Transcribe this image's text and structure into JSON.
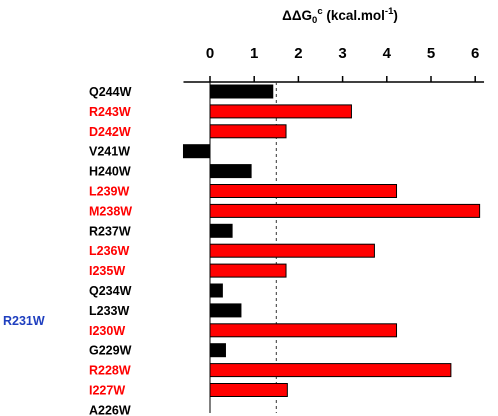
{
  "chart_data": {
    "type": "bar",
    "orientation": "horizontal",
    "title": "ΔΔG",
    "title_sub": "0",
    "title_sup": "c",
    "title_units": " (kcal.mol",
    "title_units_sup": "-1",
    "title_units_end": ")",
    "xlim": [
      -0.6,
      6.2
    ],
    "x_ticks": [
      0,
      1,
      2,
      3,
      4,
      5,
      6
    ],
    "x_tick_labels": [
      "0",
      "1",
      "2",
      "3",
      "4",
      "5",
      "6"
    ],
    "reference_line": 1.5,
    "categories": [
      "Q244W",
      "R243W",
      "D242W",
      "V241W",
      "H240W",
      "L239W",
      "M238W",
      "R237W",
      "L236W",
      "I235W",
      "Q234W",
      "L233W",
      "I230W",
      "G229W",
      "R228W",
      "I227W",
      "A226W"
    ],
    "values": [
      1.42,
      3.2,
      1.72,
      -0.6,
      0.93,
      4.22,
      6.1,
      0.5,
      3.72,
      1.72,
      0.28,
      0.7,
      4.22,
      0.35,
      5.45,
      1.75,
      null
    ],
    "highlighted": [
      false,
      true,
      true,
      false,
      false,
      true,
      true,
      false,
      true,
      true,
      false,
      false,
      true,
      false,
      true,
      true,
      false
    ],
    "side_label": "R231W",
    "colors": {
      "highlight_bar": "#ff0000",
      "normal_bar": "#000000",
      "highlight_text": "#ff0000",
      "normal_text": "#000000",
      "side_label": "#1f3fbf",
      "bar_stroke": "#000000",
      "reference_line": "#333333"
    }
  }
}
